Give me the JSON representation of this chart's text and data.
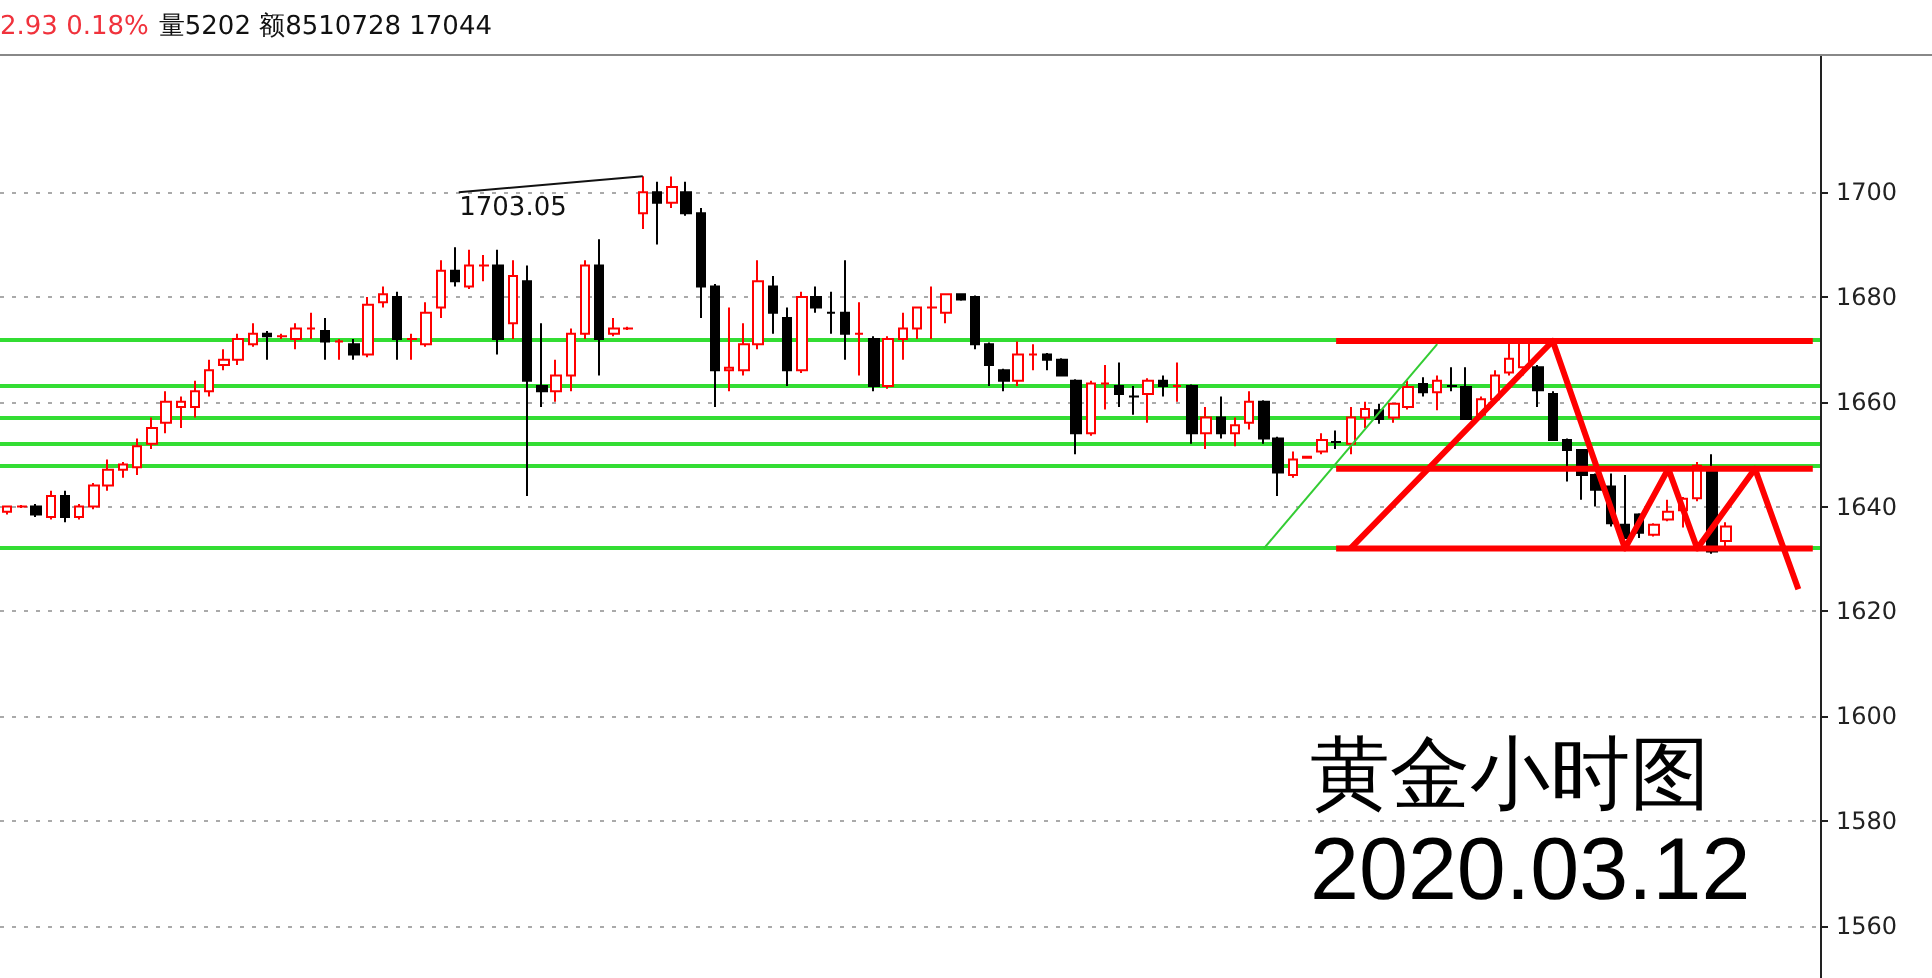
{
  "chart_data": {
    "type": "candlestick",
    "title": "黄金小时图",
    "subtitle": "2020.03.12",
    "annotations": [
      "2.93 0.18%",
      "量5202 额8510728 17044",
      "1703.05"
    ],
    "categories": [
      null,
      null,
      null,
      null,
      null,
      null,
      null,
      null,
      null,
      null,
      null,
      null,
      null,
      null,
      null,
      null,
      null,
      null,
      null,
      null,
      null,
      null,
      null,
      null,
      null,
      null,
      null,
      null,
      null,
      null,
      null,
      null,
      null,
      null,
      null,
      null,
      null,
      null,
      null,
      null,
      null,
      null,
      null,
      null,
      null,
      null,
      null,
      null,
      null,
      null,
      null,
      null,
      null,
      null,
      null,
      null,
      null,
      null,
      null,
      null,
      null,
      null,
      null,
      null,
      null,
      null,
      null,
      null,
      null,
      null,
      null,
      null,
      null,
      null,
      null,
      null,
      null,
      null,
      null,
      null,
      null,
      null,
      null,
      null,
      null,
      null,
      null,
      null,
      null,
      null,
      null,
      null,
      null,
      null,
      null,
      null,
      null,
      null,
      null,
      null,
      null,
      null,
      null,
      null,
      null,
      null,
      null,
      null,
      null,
      null,
      null,
      null,
      null,
      null,
      null,
      null,
      null,
      null,
      null,
      null,
      null,
      null,
      null,
      null,
      null,
      null
    ],
    "series": [
      {
        "ohlc": [
          [
            1639,
            1640,
            1638.5,
            1640
          ],
          [
            1640,
            1640.3,
            1639.7,
            1640
          ],
          [
            1640,
            1640.5,
            1638,
            1638.5
          ],
          [
            1638,
            1643,
            1637.5,
            1642
          ],
          [
            1642,
            1643,
            1637,
            1638
          ],
          [
            1638,
            1640.5,
            1637.5,
            1640
          ],
          [
            1640,
            1644.5,
            1639.5,
            1644
          ],
          [
            1644,
            1649,
            1643,
            1647
          ],
          [
            1647,
            1648.5,
            1645.5,
            1648
          ],
          [
            1647.5,
            1653,
            1646,
            1651.5
          ],
          [
            1652,
            1657,
            1651,
            1655
          ],
          [
            1656,
            1662,
            1654,
            1660
          ],
          [
            1659,
            1661,
            1655,
            1660
          ],
          [
            1659,
            1664,
            1657,
            1662
          ],
          [
            1662,
            1668,
            1661,
            1666
          ],
          [
            1667,
            1670,
            1666,
            1668
          ],
          [
            1668,
            1673,
            1667,
            1672
          ],
          [
            1671,
            1675,
            1670.5,
            1673
          ],
          [
            1673,
            1673.5,
            1668,
            1672.5
          ],
          [
            1672.5,
            1673,
            1672,
            1672.5
          ],
          [
            1672,
            1675,
            1670,
            1674
          ],
          [
            1674,
            1677,
            1672,
            1674
          ],
          [
            1673.5,
            1676,
            1668,
            1671.5
          ],
          [
            1671.5,
            1672,
            1668,
            1671.5
          ],
          [
            1671,
            1672,
            1668,
            1669
          ],
          [
            1669,
            1680,
            1668.5,
            1678.5
          ],
          [
            1679,
            1682,
            1678,
            1680.5
          ],
          [
            1680,
            1681,
            1668,
            1672
          ],
          [
            1672,
            1673,
            1668,
            1672
          ],
          [
            1671,
            1679,
            1670.5,
            1677
          ],
          [
            1678,
            1687,
            1676,
            1685
          ],
          [
            1685,
            1689.5,
            1682,
            1683
          ],
          [
            1682,
            1689,
            1681.5,
            1686
          ],
          [
            1686,
            1688,
            1683,
            1686
          ],
          [
            1686,
            1689,
            1669,
            1672
          ],
          [
            1675,
            1687,
            1672,
            1684
          ],
          [
            1683,
            1686,
            1642,
            1664
          ],
          [
            1663,
            1675,
            1659,
            1662
          ],
          [
            1662,
            1668,
            1660,
            1665
          ],
          [
            1665,
            1674,
            1662,
            1673
          ],
          [
            1673,
            1687,
            1672,
            1686
          ],
          [
            1686,
            1691,
            1665,
            1672
          ],
          [
            1673,
            1676,
            1672.5,
            1674
          ],
          [
            1674,
            1674.3,
            1673.7,
            1674
          ],
          [
            1696,
            1703.05,
            1693,
            1700
          ],
          [
            1700,
            1702,
            1690,
            1698
          ],
          [
            1698,
            1703,
            1697,
            1701
          ],
          [
            1700,
            1702,
            1695.5,
            1696
          ],
          [
            1696,
            1697,
            1676,
            1682
          ],
          [
            1682,
            1682.5,
            1659,
            1666
          ],
          [
            1666,
            1678,
            1662,
            1666.5
          ],
          [
            1666,
            1675,
            1665,
            1671
          ],
          [
            1671,
            1687,
            1670,
            1683
          ],
          [
            1682,
            1684,
            1673,
            1677
          ],
          [
            1676,
            1678,
            1663,
            1666
          ],
          [
            1666,
            1681,
            1665.5,
            1680
          ],
          [
            1680,
            1682,
            1677,
            1678
          ],
          [
            1677,
            1681,
            1673,
            1677
          ],
          [
            1677,
            1687,
            1668,
            1673
          ],
          [
            1673,
            1679,
            1665,
            1673
          ],
          [
            1672,
            1672.5,
            1662,
            1663
          ],
          [
            1663,
            1672.5,
            1662.5,
            1672
          ],
          [
            1672,
            1677,
            1668,
            1674
          ],
          [
            1674,
            1678,
            1672,
            1678
          ],
          [
            1678,
            1682,
            1672,
            1678
          ],
          [
            1677,
            1680.5,
            1675,
            1680.5
          ],
          [
            1680.5,
            1680.7,
            1679.3,
            1679.5
          ],
          [
            1680,
            1680.3,
            1670,
            1671
          ],
          [
            1671,
            1671.3,
            1663,
            1667
          ],
          [
            1666,
            1666.3,
            1662,
            1664
          ],
          [
            1664,
            1671.5,
            1663,
            1669
          ],
          [
            1669,
            1671,
            1666,
            1669
          ],
          [
            1669,
            1669.3,
            1666,
            1668
          ],
          [
            1668,
            1668.3,
            1665,
            1665
          ],
          [
            1664,
            1664.3,
            1650,
            1654
          ],
          [
            1654,
            1664,
            1653.5,
            1663.5
          ],
          [
            1663.5,
            1667,
            1658.5,
            1663.5
          ],
          [
            1663,
            1667.5,
            1659,
            1661.5
          ],
          [
            1661,
            1663,
            1657.5,
            1661
          ],
          [
            1661.5,
            1664.5,
            1656,
            1664
          ],
          [
            1664,
            1665,
            1661,
            1663
          ],
          [
            1663,
            1667.5,
            1660,
            1663
          ],
          [
            1663,
            1663.3,
            1652,
            1654
          ],
          [
            1654,
            1659,
            1651,
            1657
          ],
          [
            1657,
            1661,
            1653,
            1654
          ],
          [
            1654,
            1657,
            1651.5,
            1655.5
          ],
          [
            1656,
            1662,
            1654.7,
            1660
          ],
          [
            1660,
            1660.3,
            1652,
            1653
          ],
          [
            1653,
            1653.3,
            1642,
            1646.5
          ],
          [
            1646,
            1650.5,
            1645.5,
            1649
          ],
          [
            1649.3,
            1649.7,
            1649.2,
            1649.5
          ],
          [
            1650.5,
            1654,
            1650,
            1652.7
          ],
          [
            1652.3,
            1654.5,
            1651,
            1652.3
          ],
          [
            1652,
            1659,
            1650,
            1657
          ],
          [
            1657,
            1660,
            1655,
            1658.6
          ],
          [
            1658.4,
            1659.6,
            1655.8,
            1656.7
          ],
          [
            1657,
            1659.8,
            1656,
            1659.6
          ],
          [
            1659,
            1664,
            1658.5,
            1662.8
          ],
          [
            1663.4,
            1664.7,
            1661,
            1661.8
          ],
          [
            1661.8,
            1665,
            1658.4,
            1664
          ],
          [
            1663,
            1666.6,
            1662,
            1663
          ],
          [
            1662.8,
            1666.6,
            1656.5,
            1656.7
          ],
          [
            1657.5,
            1661,
            1657,
            1660.5
          ],
          [
            1660.5,
            1666,
            1660,
            1665
          ],
          [
            1665.6,
            1671.4,
            1665,
            1668.2
          ],
          [
            1666.6,
            1671.4,
            1665,
            1671.4
          ],
          [
            1666.6,
            1667,
            1659,
            1662.2
          ],
          [
            1661.5,
            1662,
            1652.5,
            1652.7
          ],
          [
            1652.7,
            1653,
            1644.8,
            1650.8
          ],
          [
            1650.8,
            1651,
            1641.3,
            1646
          ],
          [
            1646,
            1646.3,
            1640,
            1643.2
          ],
          [
            1643.8,
            1646.3,
            1636.2,
            1636.8
          ],
          [
            1636.5,
            1646,
            1634,
            1634
          ],
          [
            1638.5,
            1638.7,
            1634,
            1635
          ],
          [
            1634.6,
            1636.8,
            1634.3,
            1636.5
          ],
          [
            1637.5,
            1641.3,
            1637.2,
            1639
          ],
          [
            1639.3,
            1641.8,
            1636,
            1641.5
          ],
          [
            1641.6,
            1648.5,
            1641,
            1647.8
          ],
          [
            1646.6,
            1650,
            1631,
            1631.4
          ],
          [
            1633.4,
            1637,
            1632.4,
            1636.2
          ],
          null,
          null,
          null,
          null,
          null,
          null
        ]
      },
      {
        "type": "line",
        "color": "#ff0000",
        "values": [
          null,
          null,
          null,
          null,
          null,
          null,
          null,
          null,
          null,
          null,
          null,
          null,
          null,
          null,
          null,
          null,
          null,
          null,
          null,
          null,
          null,
          null,
          null,
          null,
          null,
          null,
          null,
          null,
          null,
          null,
          null,
          null,
          null,
          null,
          null,
          null,
          null,
          null,
          null,
          null,
          null,
          null,
          null,
          null,
          null,
          null,
          null,
          null,
          null,
          null,
          null,
          null,
          null,
          null,
          null,
          null,
          null,
          null,
          null,
          null,
          null,
          null,
          null,
          null,
          null,
          null,
          null,
          null,
          null,
          null,
          null,
          null,
          null,
          null,
          null,
          null,
          null,
          null,
          null,
          null,
          null,
          null,
          null,
          null,
          null,
          null,
          null,
          null,
          null,
          null,
          null,
          null,
          1671.6,
          null,
          null,
          null,
          null,
          null,
          null,
          null,
          null,
          null,
          null,
          null,
          null,
          null,
          null,
          null,
          null,
          null,
          null,
          null,
          null,
          null,
          null,
          null,
          null,
          null,
          null,
          null,
          null,
          null,
          null,
          null,
          null,
          1671.6
        ]
      },
      {
        "type": "line",
        "color": "#ff0000",
        "values": [
          null,
          null,
          null,
          null,
          null,
          null,
          null,
          null,
          null,
          null,
          null,
          null,
          null,
          null,
          null,
          null,
          null,
          null,
          null,
          null,
          null,
          null,
          null,
          null,
          null,
          null,
          null,
          null,
          null,
          null,
          null,
          null,
          null,
          null,
          null,
          null,
          null,
          null,
          null,
          null,
          null,
          null,
          null,
          null,
          null,
          null,
          null,
          null,
          null,
          null,
          null,
          null,
          null,
          null,
          null,
          null,
          null,
          null,
          null,
          null,
          null,
          null,
          null,
          null,
          null,
          null,
          null,
          null,
          null,
          null,
          null,
          null,
          null,
          null,
          null,
          null,
          null,
          null,
          null,
          null,
          null,
          null,
          null,
          null,
          null,
          null,
          null,
          null,
          null,
          null,
          null,
          null,
          1647.2,
          null,
          null,
          null,
          null,
          null,
          null,
          null,
          null,
          null,
          null,
          null,
          null,
          null,
          null,
          null,
          null,
          null,
          null,
          null,
          null,
          null,
          null,
          null,
          null,
          null,
          null,
          null,
          null,
          null,
          null,
          null,
          null,
          1647.2
        ]
      },
      {
        "type": "line",
        "color": "#ff0000",
        "values": [
          null,
          null,
          null,
          null,
          null,
          null,
          null,
          null,
          null,
          null,
          null,
          null,
          null,
          null,
          null,
          null,
          null,
          null,
          null,
          null,
          null,
          null,
          null,
          null,
          null,
          null,
          null,
          null,
          null,
          null,
          null,
          null,
          null,
          null,
          null,
          null,
          null,
          null,
          null,
          null,
          null,
          null,
          null,
          null,
          null,
          null,
          null,
          null,
          null,
          null,
          null,
          null,
          null,
          null,
          null,
          null,
          null,
          null,
          null,
          null,
          null,
          null,
          null,
          null,
          null,
          null,
          null,
          null,
          null,
          null,
          null,
          null,
          null,
          null,
          null,
          null,
          null,
          null,
          null,
          null,
          null,
          null,
          null,
          null,
          null,
          null,
          null,
          null,
          null,
          null,
          null,
          null,
          1632,
          null,
          null,
          null,
          null,
          null,
          null,
          null,
          null,
          null,
          null,
          null,
          null,
          null,
          null,
          null,
          null,
          null,
          null,
          null,
          null,
          null,
          null,
          null,
          null,
          null,
          null,
          null,
          null,
          null,
          null,
          null,
          null,
          1632
        ]
      },
      {
        "type": "line",
        "color": "#ff0000",
        "values": [
          null,
          null,
          null,
          null,
          null,
          null,
          null,
          null,
          null,
          null,
          null,
          null,
          null,
          null,
          null,
          null,
          null,
          null,
          null,
          null,
          null,
          null,
          null,
          null,
          null,
          null,
          null,
          null,
          null,
          null,
          null,
          null,
          null,
          null,
          null,
          null,
          null,
          null,
          null,
          null,
          null,
          null,
          null,
          null,
          null,
          null,
          null,
          null,
          null,
          null,
          null,
          null,
          null,
          null,
          null,
          null,
          null,
          null,
          null,
          null,
          null,
          null,
          null,
          null,
          null,
          null,
          null,
          null,
          null,
          null,
          null,
          null,
          null,
          null,
          null,
          null,
          null,
          null,
          null,
          null,
          null,
          null,
          null,
          null,
          null,
          null,
          null,
          null,
          null,
          null,
          null,
          null,
          null,
          1632,
          null,
          null,
          null,
          null,
          null,
          null,
          null,
          null,
          null,
          null,
          null,
          null,
          null,
          1671.6,
          null,
          null,
          null,
          null,
          1632,
          null,
          null,
          1647.2,
          null,
          1632,
          null,
          null,
          null,
          1647.2,
          null,
          null,
          1624.2,
          null
        ]
      },
      {
        "type": "line",
        "color": "#33cc33",
        "values": [
          null,
          null,
          null,
          null,
          null,
          null,
          null,
          null,
          null,
          null,
          null,
          null,
          null,
          null,
          null,
          null,
          null,
          null,
          null,
          null,
          null,
          null,
          null,
          null,
          null,
          null,
          null,
          null,
          null,
          null,
          null,
          null,
          null,
          null,
          null,
          null,
          null,
          null,
          null,
          null,
          null,
          null,
          null,
          null,
          null,
          null,
          null,
          null,
          null,
          null,
          null,
          null,
          null,
          null,
          null,
          null,
          null,
          null,
          null,
          null,
          null,
          null,
          null,
          null,
          null,
          null,
          null,
          null,
          null,
          null,
          null,
          null,
          null,
          null,
          null,
          null,
          null,
          null,
          null,
          null,
          null,
          null,
          null,
          null,
          null,
          null,
          null,
          1632,
          null,
          null,
          null,
          null,
          null,
          null,
          null,
          null,
          null,
          null,
          null,
          1671,
          null,
          null,
          null,
          null,
          null,
          null,
          null,
          null,
          null,
          null,
          null,
          null,
          null,
          null,
          null,
          null,
          null,
          null,
          null,
          null,
          null,
          null,
          null,
          null,
          null,
          null
        ]
      }
    ],
    "ref_lines": [
      {
        "axis": "y",
        "value": 1672,
        "color": "#33dd33"
      },
      {
        "axis": "y",
        "value": 1663,
        "color": "#33dd33"
      },
      {
        "axis": "y",
        "value": 1657,
        "color": "#33dd33"
      },
      {
        "axis": "y",
        "value": 1652,
        "color": "#33dd33"
      },
      {
        "axis": "y",
        "value": 1648,
        "color": "#33dd33"
      },
      {
        "axis": "y",
        "value": 1632,
        "color": "#33dd33"
      }
    ],
    "ylim": [
      1550,
      1726
    ],
    "yticks": [
      1560,
      1580,
      1600,
      1620,
      1640,
      1660,
      1680,
      1700
    ],
    "grid": "y"
  }
}
